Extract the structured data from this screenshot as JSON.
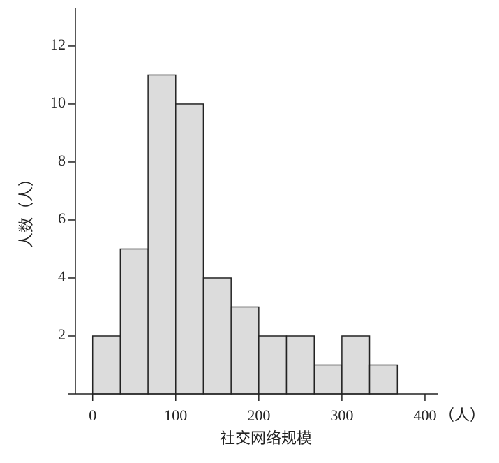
{
  "chart_data": {
    "type": "histogram",
    "x_label": "社交网络规模",
    "x_unit": "（人）",
    "y_label": "人数（人）",
    "bins": [
      0,
      33.3,
      66.7,
      100,
      133.3,
      166.7,
      200,
      233.3,
      266.7,
      300,
      333.3,
      366.7
    ],
    "values": [
      2,
      5,
      11,
      10,
      4,
      3,
      2,
      2,
      1,
      2,
      1
    ],
    "color": "#dcdcdc",
    "edge_color": "#222222",
    "xlim": [
      -30,
      416
    ],
    "ylim": [
      0,
      13.3
    ],
    "xticks": [
      0,
      100,
      200,
      300,
      400
    ],
    "yticks": [
      2,
      4,
      6,
      8,
      10,
      12
    ],
    "grid": false
  }
}
